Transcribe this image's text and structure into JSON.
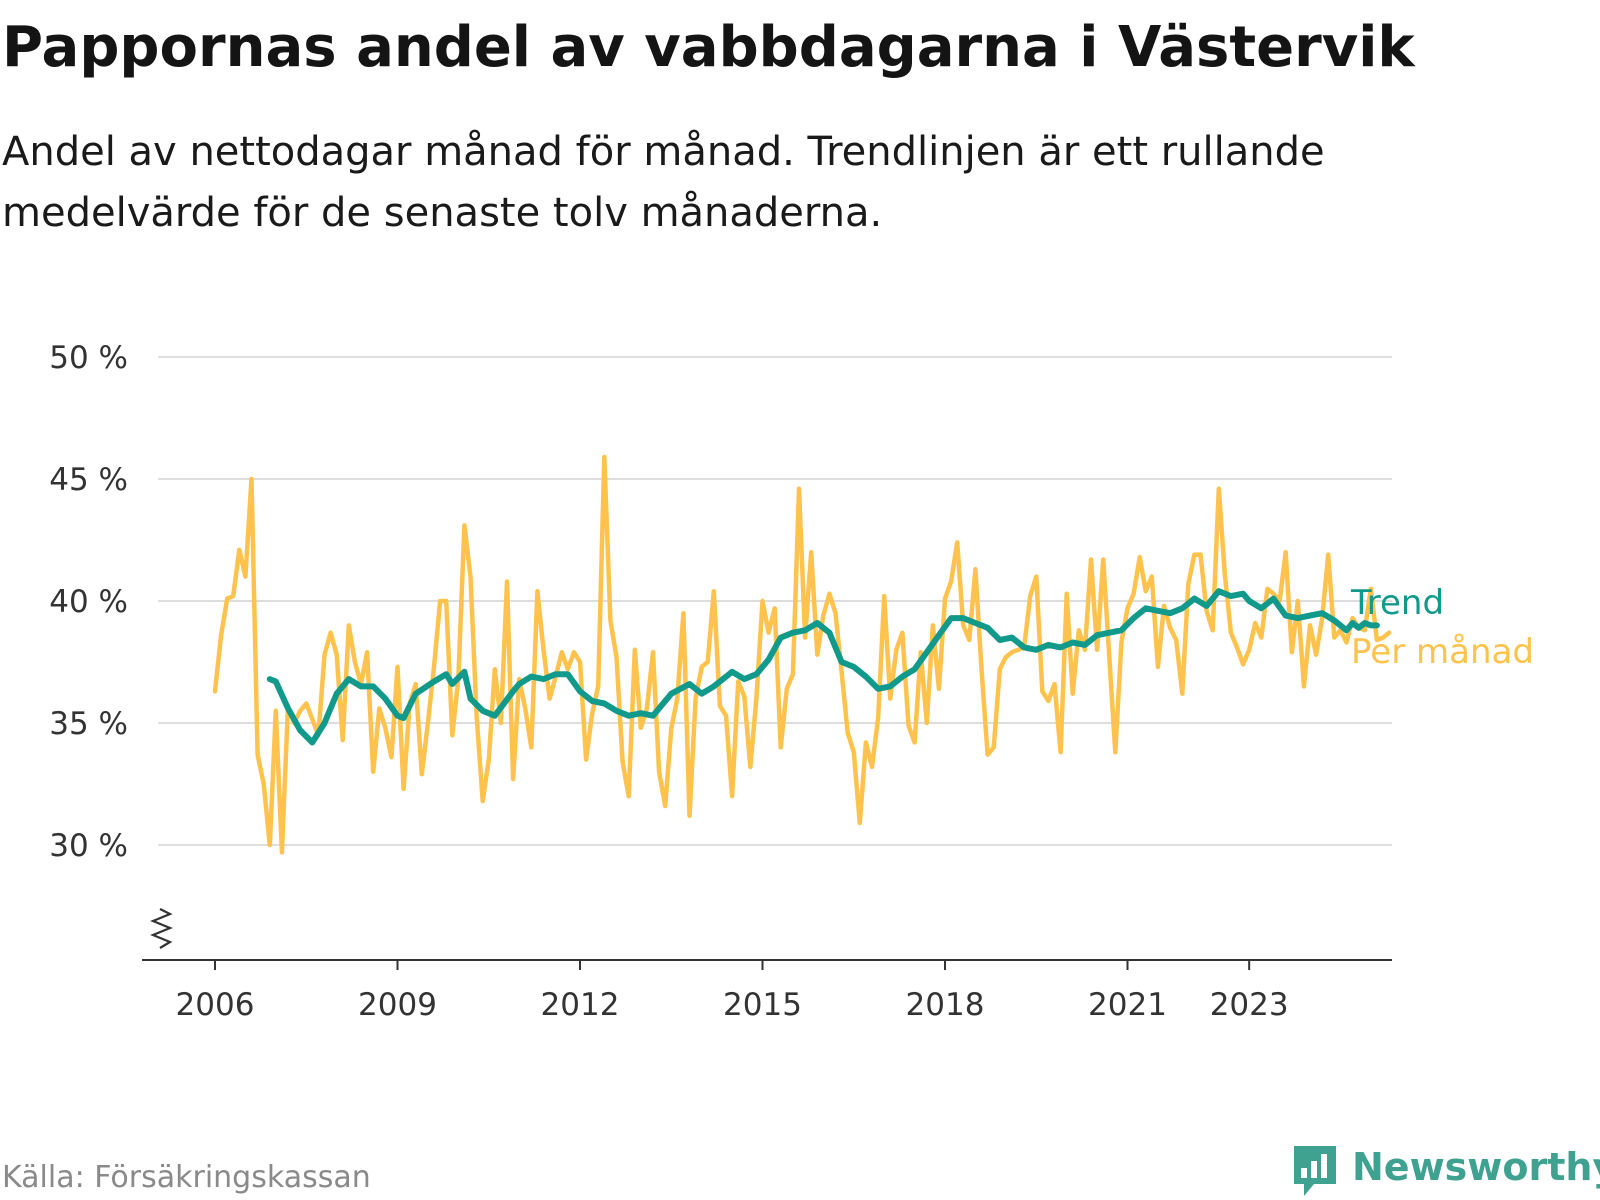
{
  "header": {
    "title": "Pappornas andel av vabbdagarna i Västervik",
    "subtitle": "Andel av nettodagar månad för månad. Trendlinjen är ett rullande medelvärde för de senaste tolv månaderna."
  },
  "footer": {
    "source": "Källa: Försäkringskassan",
    "brand": "Newsworthy"
  },
  "colors": {
    "monthly": "#ffc34d",
    "trend": "#119a8b",
    "grid": "#dddddd",
    "axis": "#333333",
    "brand": "#3fa190"
  },
  "chart_data": {
    "type": "line",
    "title": "Pappornas andel av vabbdagarna i Västervik",
    "subtitle": "Andel av nettodagar månad för månad. Trendlinjen är ett rullande medelvärde för de senaste tolv månaderna.",
    "xlabel": "",
    "ylabel": "",
    "x_unit": "year (decimal, month resolution)",
    "ylim": [
      25,
      50
    ],
    "y_ticks": [
      30,
      35,
      40,
      45,
      50
    ],
    "y_tick_labels": [
      "30 %",
      "35 %",
      "40 %",
      "45 %",
      "50 %"
    ],
    "x_ticks": [
      2006,
      2009,
      2012,
      2015,
      2018,
      2021,
      2023
    ],
    "x_tick_labels": [
      "2006",
      "2009",
      "2012",
      "2015",
      "2018",
      "2021",
      "2023"
    ],
    "y_axis_break": true,
    "grid": true,
    "legend": "end-of-line labels",
    "series": [
      {
        "name": "Trend",
        "color": "#119a8b",
        "points": [
          [
            2006.9,
            36.8
          ],
          [
            2007.0,
            36.7
          ],
          [
            2007.2,
            35.6
          ],
          [
            2007.4,
            34.7
          ],
          [
            2007.6,
            34.2
          ],
          [
            2007.8,
            35.0
          ],
          [
            2008.0,
            36.2
          ],
          [
            2008.2,
            36.8
          ],
          [
            2008.4,
            36.5
          ],
          [
            2008.6,
            36.5
          ],
          [
            2008.8,
            36.0
          ],
          [
            2009.0,
            35.3
          ],
          [
            2009.1,
            35.2
          ],
          [
            2009.3,
            36.2
          ],
          [
            2009.6,
            36.7
          ],
          [
            2009.8,
            37.0
          ],
          [
            2009.9,
            36.6
          ],
          [
            2010.1,
            37.1
          ],
          [
            2010.2,
            36.0
          ],
          [
            2010.4,
            35.5
          ],
          [
            2010.6,
            35.3
          ],
          [
            2010.9,
            36.3
          ],
          [
            2011.0,
            36.6
          ],
          [
            2011.2,
            36.9
          ],
          [
            2011.4,
            36.8
          ],
          [
            2011.6,
            37.0
          ],
          [
            2011.8,
            37.0
          ],
          [
            2012.0,
            36.3
          ],
          [
            2012.2,
            35.9
          ],
          [
            2012.4,
            35.8
          ],
          [
            2012.6,
            35.5
          ],
          [
            2012.8,
            35.3
          ],
          [
            2013.0,
            35.4
          ],
          [
            2013.2,
            35.3
          ],
          [
            2013.5,
            36.2
          ],
          [
            2013.8,
            36.6
          ],
          [
            2014.0,
            36.2
          ],
          [
            2014.2,
            36.5
          ],
          [
            2014.5,
            37.1
          ],
          [
            2014.7,
            36.8
          ],
          [
            2014.9,
            37.0
          ],
          [
            2015.1,
            37.6
          ],
          [
            2015.3,
            38.5
          ],
          [
            2015.5,
            38.7
          ],
          [
            2015.7,
            38.8
          ],
          [
            2015.9,
            39.1
          ],
          [
            2016.1,
            38.7
          ],
          [
            2016.3,
            37.5
          ],
          [
            2016.5,
            37.3
          ],
          [
            2016.7,
            36.9
          ],
          [
            2016.9,
            36.4
          ],
          [
            2017.1,
            36.5
          ],
          [
            2017.3,
            36.9
          ],
          [
            2017.5,
            37.2
          ],
          [
            2017.7,
            37.9
          ],
          [
            2017.9,
            38.6
          ],
          [
            2018.1,
            39.3
          ],
          [
            2018.3,
            39.3
          ],
          [
            2018.5,
            39.1
          ],
          [
            2018.7,
            38.9
          ],
          [
            2018.9,
            38.4
          ],
          [
            2019.1,
            38.5
          ],
          [
            2019.3,
            38.1
          ],
          [
            2019.5,
            38.0
          ],
          [
            2019.7,
            38.2
          ],
          [
            2019.9,
            38.1
          ],
          [
            2020.1,
            38.3
          ],
          [
            2020.3,
            38.2
          ],
          [
            2020.5,
            38.6
          ],
          [
            2020.7,
            38.7
          ],
          [
            2020.9,
            38.8
          ],
          [
            2021.1,
            39.3
          ],
          [
            2021.3,
            39.7
          ],
          [
            2021.5,
            39.6
          ],
          [
            2021.7,
            39.5
          ],
          [
            2021.9,
            39.7
          ],
          [
            2022.1,
            40.1
          ],
          [
            2022.3,
            39.8
          ],
          [
            2022.5,
            40.4
          ],
          [
            2022.7,
            40.2
          ],
          [
            2022.9,
            40.3
          ],
          [
            2023.0,
            40.0
          ],
          [
            2023.2,
            39.7
          ],
          [
            2023.4,
            40.1
          ],
          [
            2023.6,
            39.4
          ],
          [
            2023.8,
            39.3
          ],
          [
            2024.0,
            39.4
          ],
          [
            2024.2,
            39.5
          ],
          [
            2024.4,
            39.2
          ],
          [
            2024.6,
            38.8
          ],
          [
            2024.7,
            39.1
          ],
          [
            2024.8,
            38.9
          ],
          [
            2024.9,
            39.1
          ],
          [
            2025.0,
            39.0
          ],
          [
            2025.1,
            39.0
          ]
        ]
      },
      {
        "name": "Per månad",
        "color": "#ffc34d",
        "points": [
          [
            2006.0,
            36.3
          ],
          [
            2006.1,
            38.6
          ],
          [
            2006.2,
            40.1
          ],
          [
            2006.3,
            40.2
          ],
          [
            2006.4,
            42.1
          ],
          [
            2006.5,
            41.0
          ],
          [
            2006.6,
            45.0
          ],
          [
            2006.7,
            33.7
          ],
          [
            2006.8,
            32.5
          ],
          [
            2006.9,
            30.0
          ],
          [
            2007.0,
            35.5
          ],
          [
            2007.1,
            29.7
          ],
          [
            2007.2,
            35.7
          ],
          [
            2007.3,
            35.0
          ],
          [
            2007.4,
            35.5
          ],
          [
            2007.5,
            35.8
          ],
          [
            2007.7,
            34.5
          ],
          [
            2007.8,
            37.8
          ],
          [
            2007.9,
            38.7
          ],
          [
            2008.0,
            37.8
          ],
          [
            2008.1,
            34.3
          ],
          [
            2008.2,
            39.0
          ],
          [
            2008.3,
            37.5
          ],
          [
            2008.4,
            36.6
          ],
          [
            2008.5,
            37.9
          ],
          [
            2008.6,
            33.0
          ],
          [
            2008.7,
            35.6
          ],
          [
            2008.8,
            34.8
          ],
          [
            2008.9,
            33.6
          ],
          [
            2009.0,
            37.3
          ],
          [
            2009.1,
            32.3
          ],
          [
            2009.2,
            35.8
          ],
          [
            2009.3,
            36.6
          ],
          [
            2009.4,
            32.9
          ],
          [
            2009.5,
            35.0
          ],
          [
            2009.6,
            37.3
          ],
          [
            2009.7,
            40.0
          ],
          [
            2009.8,
            40.0
          ],
          [
            2009.9,
            34.5
          ],
          [
            2010.0,
            36.8
          ],
          [
            2010.1,
            43.1
          ],
          [
            2010.2,
            41.0
          ],
          [
            2010.3,
            35.3
          ],
          [
            2010.4,
            31.8
          ],
          [
            2010.5,
            33.5
          ],
          [
            2010.6,
            37.2
          ],
          [
            2010.7,
            35.0
          ],
          [
            2010.8,
            40.8
          ],
          [
            2010.9,
            32.7
          ],
          [
            2011.0,
            36.8
          ],
          [
            2011.1,
            35.6
          ],
          [
            2011.2,
            34.0
          ],
          [
            2011.3,
            40.4
          ],
          [
            2011.4,
            38.0
          ],
          [
            2011.5,
            36.0
          ],
          [
            2011.6,
            36.9
          ],
          [
            2011.7,
            37.9
          ],
          [
            2011.8,
            37.2
          ],
          [
            2011.9,
            37.9
          ],
          [
            2012.0,
            37.5
          ],
          [
            2012.1,
            33.5
          ],
          [
            2012.2,
            35.4
          ],
          [
            2012.3,
            36.5
          ],
          [
            2012.4,
            45.9
          ],
          [
            2012.5,
            39.2
          ],
          [
            2012.6,
            37.7
          ],
          [
            2012.7,
            33.4
          ],
          [
            2012.8,
            32.0
          ],
          [
            2012.9,
            38.0
          ],
          [
            2013.0,
            34.8
          ],
          [
            2013.1,
            35.6
          ],
          [
            2013.2,
            37.9
          ],
          [
            2013.3,
            33.0
          ],
          [
            2013.4,
            31.6
          ],
          [
            2013.5,
            34.8
          ],
          [
            2013.6,
            36.0
          ],
          [
            2013.7,
            39.5
          ],
          [
            2013.8,
            31.2
          ],
          [
            2013.9,
            36.0
          ],
          [
            2014.0,
            37.3
          ],
          [
            2014.1,
            37.5
          ],
          [
            2014.2,
            40.4
          ],
          [
            2014.3,
            35.7
          ],
          [
            2014.4,
            35.3
          ],
          [
            2014.5,
            32.0
          ],
          [
            2014.6,
            36.7
          ],
          [
            2014.7,
            36.1
          ],
          [
            2014.8,
            33.2
          ],
          [
            2014.9,
            36.0
          ],
          [
            2015.0,
            40.0
          ],
          [
            2015.1,
            38.7
          ],
          [
            2015.2,
            39.7
          ],
          [
            2015.3,
            34.0
          ],
          [
            2015.4,
            36.4
          ],
          [
            2015.5,
            37.0
          ],
          [
            2015.6,
            44.6
          ],
          [
            2015.7,
            38.5
          ],
          [
            2015.8,
            42.0
          ],
          [
            2015.9,
            37.8
          ],
          [
            2016.0,
            39.4
          ],
          [
            2016.1,
            40.3
          ],
          [
            2016.2,
            39.5
          ],
          [
            2016.3,
            37.1
          ],
          [
            2016.4,
            34.6
          ],
          [
            2016.5,
            33.8
          ],
          [
            2016.6,
            30.9
          ],
          [
            2016.7,
            34.2
          ],
          [
            2016.8,
            33.2
          ],
          [
            2016.9,
            35.2
          ],
          [
            2017.0,
            40.2
          ],
          [
            2017.1,
            36.0
          ],
          [
            2017.2,
            38.0
          ],
          [
            2017.3,
            38.7
          ],
          [
            2017.4,
            34.9
          ],
          [
            2017.5,
            34.2
          ],
          [
            2017.6,
            37.9
          ],
          [
            2017.7,
            35.0
          ],
          [
            2017.8,
            39.0
          ],
          [
            2017.9,
            36.4
          ],
          [
            2018.0,
            40.1
          ],
          [
            2018.1,
            40.8
          ],
          [
            2018.2,
            42.4
          ],
          [
            2018.3,
            39.0
          ],
          [
            2018.4,
            38.4
          ],
          [
            2018.5,
            41.3
          ],
          [
            2018.6,
            37.2
          ],
          [
            2018.7,
            33.7
          ],
          [
            2018.8,
            34.0
          ],
          [
            2018.9,
            37.2
          ],
          [
            2019.0,
            37.7
          ],
          [
            2019.1,
            37.9
          ],
          [
            2019.2,
            38.0
          ],
          [
            2019.3,
            38.1
          ],
          [
            2019.4,
            40.2
          ],
          [
            2019.5,
            41.0
          ],
          [
            2019.6,
            36.3
          ],
          [
            2019.7,
            35.9
          ],
          [
            2019.8,
            36.6
          ],
          [
            2019.9,
            33.8
          ],
          [
            2020.0,
            40.3
          ],
          [
            2020.1,
            36.2
          ],
          [
            2020.2,
            38.8
          ],
          [
            2020.3,
            38.0
          ],
          [
            2020.4,
            41.7
          ],
          [
            2020.5,
            38.0
          ],
          [
            2020.6,
            41.7
          ],
          [
            2020.7,
            37.7
          ],
          [
            2020.8,
            33.8
          ],
          [
            2020.9,
            38.3
          ],
          [
            2021.0,
            39.7
          ],
          [
            2021.1,
            40.3
          ],
          [
            2021.2,
            41.8
          ],
          [
            2021.3,
            40.4
          ],
          [
            2021.4,
            41.0
          ],
          [
            2021.5,
            37.3
          ],
          [
            2021.6,
            39.8
          ],
          [
            2021.7,
            38.9
          ],
          [
            2021.8,
            38.4
          ],
          [
            2021.9,
            36.2
          ],
          [
            2022.0,
            40.7
          ],
          [
            2022.1,
            41.9
          ],
          [
            2022.2,
            41.9
          ],
          [
            2022.3,
            39.6
          ],
          [
            2022.4,
            38.8
          ],
          [
            2022.5,
            44.6
          ],
          [
            2022.6,
            41.1
          ],
          [
            2022.7,
            38.7
          ],
          [
            2022.8,
            38.1
          ],
          [
            2022.9,
            37.4
          ],
          [
            2023.0,
            38.0
          ],
          [
            2023.1,
            39.1
          ],
          [
            2023.2,
            38.5
          ],
          [
            2023.3,
            40.5
          ],
          [
            2023.4,
            40.3
          ],
          [
            2023.5,
            40.0
          ],
          [
            2023.6,
            42.0
          ],
          [
            2023.7,
            37.9
          ],
          [
            2023.8,
            40.0
          ],
          [
            2023.9,
            36.5
          ],
          [
            2024.0,
            39.0
          ],
          [
            2024.1,
            37.8
          ],
          [
            2024.2,
            39.3
          ],
          [
            2024.3,
            41.9
          ],
          [
            2024.4,
            38.5
          ],
          [
            2024.5,
            38.8
          ],
          [
            2024.6,
            38.3
          ],
          [
            2024.7,
            39.3
          ],
          [
            2024.8,
            38.9
          ],
          [
            2024.9,
            38.8
          ],
          [
            2025.0,
            40.5
          ],
          [
            2025.1,
            38.4
          ],
          [
            2025.2,
            38.5
          ],
          [
            2025.3,
            38.7
          ]
        ]
      }
    ]
  }
}
